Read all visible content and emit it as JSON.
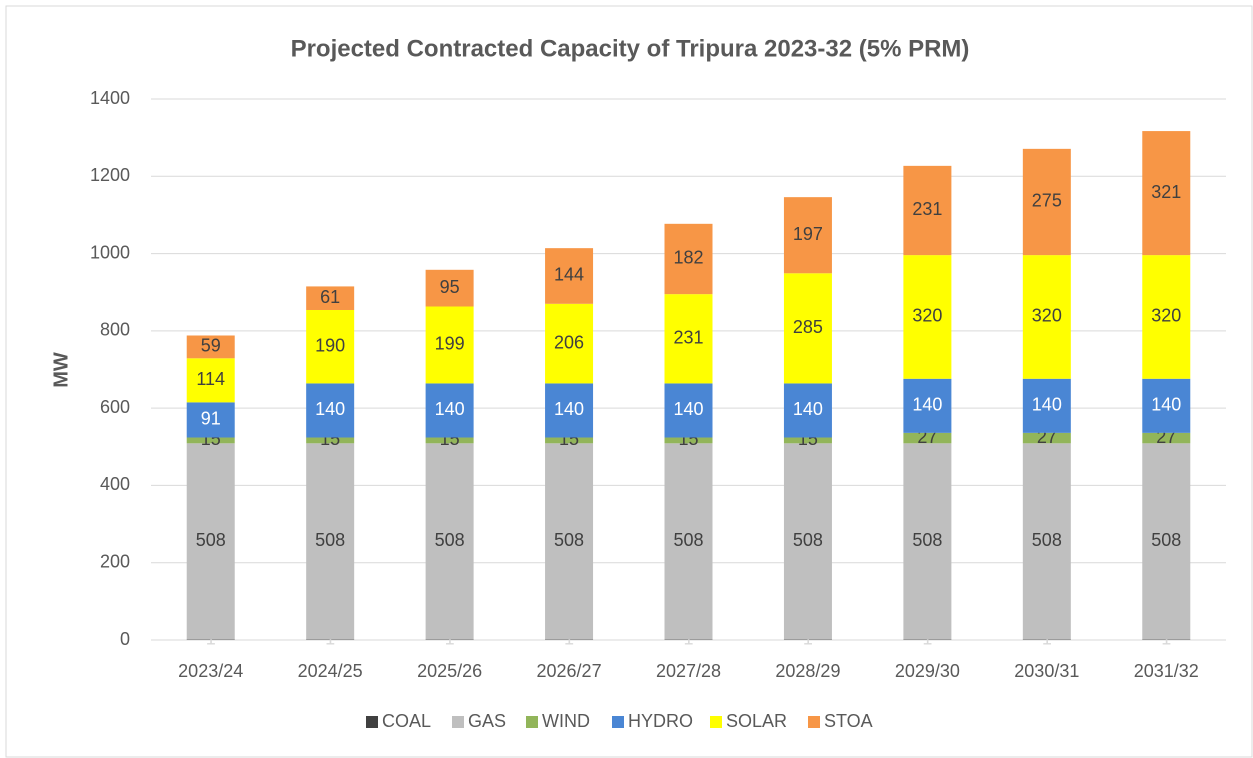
{
  "chart_data": {
    "type": "stacked_bar",
    "title": "Projected Contracted Capacity of Tripura 2023-32 (5% PRM)",
    "y_label": "MW",
    "categories": [
      "2023/24",
      "2024/25",
      "2025/26",
      "2026/27",
      "2027/28",
      "2028/29",
      "2029/30",
      "2030/31",
      "2031/32"
    ],
    "series": [
      {
        "name": "COAL",
        "color": "#404040",
        "label_color": "#d9d9d9",
        "values": [
          1,
          1,
          1,
          1,
          1,
          1,
          1,
          1,
          1
        ]
      },
      {
        "name": "GAS",
        "color": "#bfbfbf",
        "label_color": "#404040",
        "values": [
          508,
          508,
          508,
          508,
          508,
          508,
          508,
          508,
          508
        ]
      },
      {
        "name": "WIND",
        "color": "#92b55a",
        "label_color": "#404040",
        "values": [
          15,
          15,
          15,
          15,
          15,
          15,
          27,
          27,
          27
        ]
      },
      {
        "name": "HYDRO",
        "color": "#4a86d4",
        "label_color": "#ffffff",
        "values": [
          91,
          140,
          140,
          140,
          140,
          140,
          140,
          140,
          140
        ]
      },
      {
        "name": "SOLAR",
        "color": "#ffff00",
        "label_color": "#404040",
        "values": [
          114,
          190,
          199,
          206,
          231,
          285,
          320,
          320,
          320
        ]
      },
      {
        "name": "STOA",
        "color": "#f79646",
        "label_color": "#404040",
        "values": [
          59,
          61,
          95,
          144,
          182,
          197,
          231,
          275,
          321
        ]
      }
    ],
    "ylim": [
      0,
      1400
    ],
    "yticks": [
      0,
      200,
      400,
      600,
      800,
      1000,
      1200,
      1400
    ],
    "grid": true,
    "legend": "bottom"
  }
}
